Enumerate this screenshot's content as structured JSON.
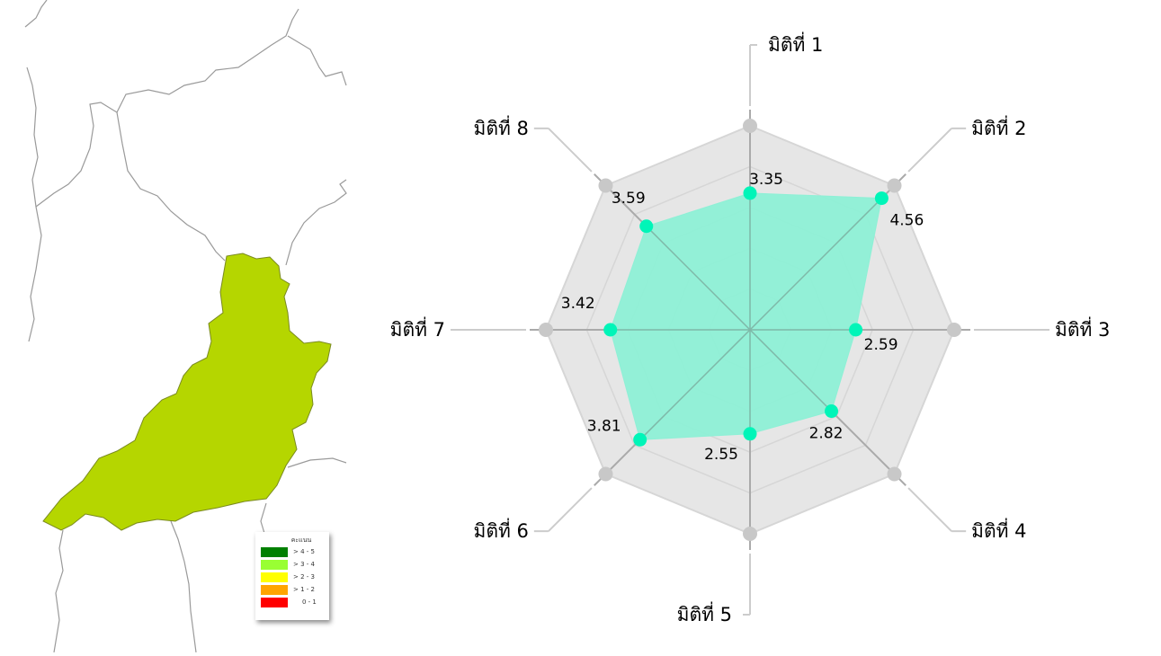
{
  "map": {
    "region_color": "#b5d600",
    "border_color": "#9a9a9a",
    "legend": {
      "title": "คะแนน",
      "items": [
        {
          "label": "> 4 - 5",
          "color": "#008000"
        },
        {
          "label": "> 3 - 4",
          "color": "#99ff33"
        },
        {
          "label": "> 2 - 3",
          "color": "#ffff00"
        },
        {
          "label": "> 1 - 2",
          "color": "#ffa500"
        },
        {
          "label": "0 - 1",
          "color": "#ff0000"
        }
      ]
    }
  },
  "chart_data": {
    "type": "radar",
    "categories": [
      "มิติที่ 1",
      "มิติที่ 2",
      "มิติที่ 3",
      "มิติที่ 4",
      "มิติที่ 5",
      "มิติที่ 6",
      "มิติที่ 7",
      "มิติที่ 8"
    ],
    "values": [
      3.35,
      4.56,
      2.59,
      2.82,
      2.55,
      3.81,
      3.42,
      3.59
    ],
    "value_labels": [
      "3.35",
      "4.56",
      "2.59",
      "2.82",
      "2.55",
      "3.81",
      "3.42",
      "3.59"
    ],
    "range": [
      0,
      5
    ],
    "gridlines": 5,
    "colors": {
      "fill": "#8ef0d6",
      "point": "#00f5b8",
      "web": "#e6e6e6",
      "grid": "#d6d6d6",
      "axis": "#aaaaaa",
      "leader": "#cccccc",
      "vertex": "#c8c8c8"
    }
  }
}
